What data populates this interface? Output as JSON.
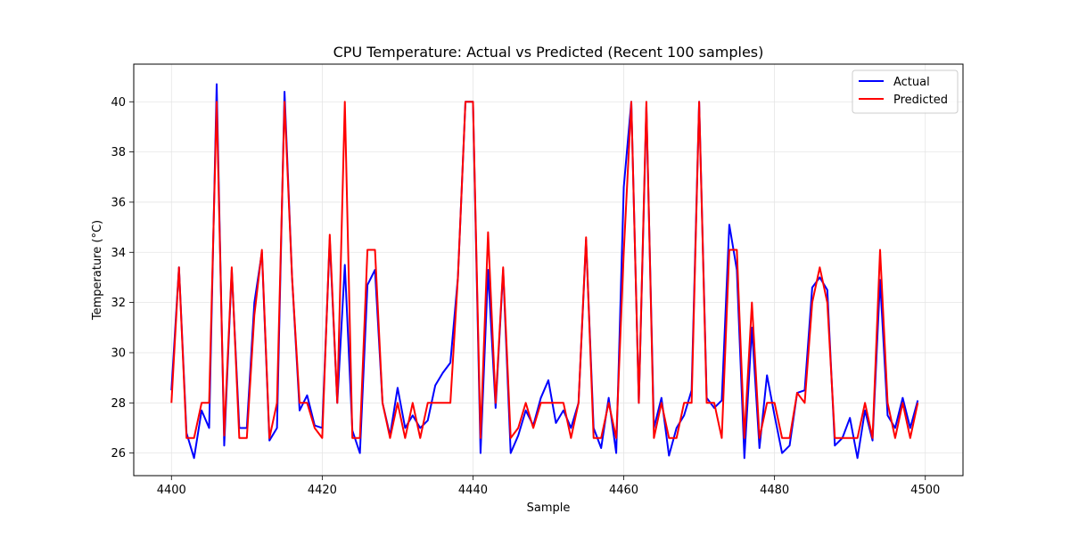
{
  "chart_data": {
    "type": "line",
    "title": "CPU Temperature: Actual vs Predicted (Recent 100 samples)",
    "xlabel": "Sample",
    "ylabel": "Temperature (°C)",
    "xlim": [
      4395,
      4505
    ],
    "ylim": [
      25.1,
      41.5
    ],
    "xticks": [
      4400,
      4420,
      4440,
      4460,
      4480,
      4500
    ],
    "yticks": [
      26,
      28,
      30,
      32,
      34,
      36,
      38,
      40
    ],
    "grid": true,
    "legend_position": "top-right",
    "x_start": 4400,
    "series": [
      {
        "name": "Actual",
        "color": "#0000ff",
        "values": [
          28.5,
          33.4,
          26.8,
          25.8,
          27.7,
          27.0,
          40.7,
          26.3,
          33.3,
          27.0,
          27.0,
          32.0,
          34.0,
          26.5,
          27.0,
          40.4,
          33.0,
          27.7,
          28.3,
          27.1,
          27.0,
          34.5,
          28.0,
          33.5,
          26.9,
          26.0,
          32.7,
          33.3,
          28.0,
          26.7,
          28.6,
          27.0,
          27.5,
          27.0,
          27.3,
          28.7,
          29.2,
          29.6,
          33.0,
          40.0,
          40.0,
          26.0,
          33.3,
          27.8,
          33.3,
          26.0,
          26.7,
          27.7,
          27.1,
          28.2,
          28.9,
          27.2,
          27.7,
          27.0,
          28.0,
          34.5,
          27.0,
          26.2,
          28.2,
          26.0,
          36.6,
          40.0,
          28.0,
          39.8,
          27.0,
          28.2,
          25.9,
          27.0,
          27.5,
          28.5,
          40.0,
          28.2,
          27.8,
          28.1,
          35.1,
          33.3,
          25.8,
          31.0,
          26.2,
          29.1,
          27.5,
          26.0,
          26.3,
          28.4,
          28.5,
          32.6,
          33.0,
          32.5,
          26.3,
          26.6,
          27.4,
          25.8,
          27.7,
          26.5,
          32.9,
          27.5,
          27.0,
          28.2,
          27.0,
          28.1
        ]
      },
      {
        "name": "Predicted",
        "color": "#ff0000",
        "values": [
          28.0,
          33.4,
          26.6,
          26.6,
          28.0,
          28.0,
          40.0,
          26.7,
          33.4,
          26.6,
          26.6,
          31.5,
          34.1,
          26.6,
          28.0,
          40.0,
          33.0,
          28.0,
          28.0,
          27.0,
          26.6,
          34.7,
          28.0,
          40.0,
          26.6,
          26.6,
          34.1,
          34.1,
          28.0,
          26.6,
          28.0,
          26.6,
          28.0,
          26.6,
          28.0,
          28.0,
          28.0,
          28.0,
          33.0,
          40.0,
          40.0,
          26.6,
          34.8,
          28.0,
          33.4,
          26.6,
          27.0,
          28.0,
          27.0,
          28.0,
          28.0,
          28.0,
          28.0,
          26.6,
          28.0,
          34.6,
          26.6,
          26.6,
          28.0,
          26.6,
          34.0,
          40.0,
          28.0,
          40.0,
          26.6,
          28.0,
          26.6,
          26.6,
          28.0,
          28.0,
          40.0,
          28.0,
          28.0,
          26.6,
          34.1,
          34.1,
          26.6,
          32.0,
          26.6,
          28.0,
          28.0,
          26.6,
          26.6,
          28.4,
          28.0,
          32.0,
          33.4,
          32.0,
          26.6,
          26.6,
          26.6,
          26.6,
          28.0,
          26.6,
          34.1,
          28.0,
          26.6,
          28.0,
          26.6,
          28.0
        ]
      }
    ]
  }
}
